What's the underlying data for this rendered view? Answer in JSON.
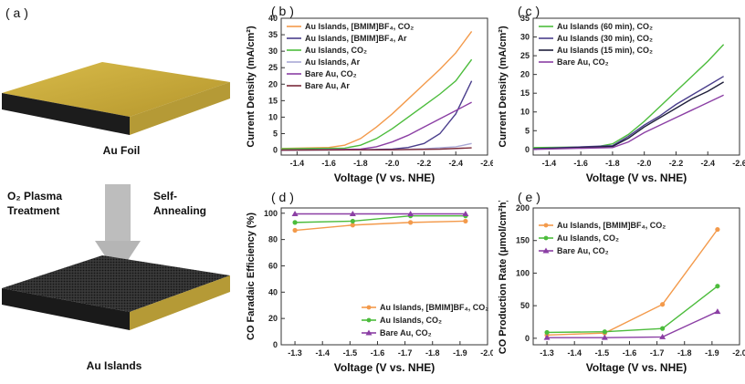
{
  "panel_a": {
    "label": "( a )",
    "foil_caption": "Au Foil",
    "treatment_left": [
      "O₂ Plasma",
      "Treatment"
    ],
    "treatment_right": [
      "Self-",
      "Annealing"
    ],
    "islands_caption": "Au Islands",
    "colors": {
      "gold": "#c8a93a",
      "gold_dark": "#9a7f22",
      "arrow": "#b8b8b8",
      "islands": "#2b2b2b"
    }
  },
  "chart_data": [
    {
      "id": "b",
      "panel_label": "( b )",
      "type": "line",
      "xlabel": "Voltage (V vs. NHE)",
      "ylabel": "Current Density (mA/cm²)",
      "xlim": [
        -1.3,
        -2.6
      ],
      "ylim": [
        -1.5,
        40
      ],
      "xticks": [
        "-1.4",
        "-1.6",
        "-1.8",
        "-2.0",
        "-2.2",
        "-2.4",
        "-2.6"
      ],
      "xtick_values": [
        -1.4,
        -1.6,
        -1.8,
        -2.0,
        -2.2,
        -2.4,
        -2.6
      ],
      "yticks": [
        "0",
        "5",
        "10",
        "15",
        "20",
        "25",
        "30",
        "35",
        "40"
      ],
      "ytick_values": [
        0,
        5,
        10,
        15,
        20,
        25,
        30,
        35,
        40
      ],
      "legend": "top-left",
      "series": [
        {
          "name": "Au Islands, [BMIM]BF₄, CO₂",
          "color": "#f39a4b",
          "x": [
            -1.3,
            -1.6,
            -1.7,
            -1.8,
            -1.9,
            -2.0,
            -2.1,
            -2.2,
            -2.3,
            -2.4,
            -2.5
          ],
          "y": [
            0.5,
            0.8,
            1.5,
            3.5,
            7,
            11,
            15.5,
            20,
            24.5,
            29.5,
            36
          ]
        },
        {
          "name": "Au Islands, [BMIM]BF₄, Ar",
          "color": "#4a3e8c",
          "x": [
            -1.3,
            -1.8,
            -2.0,
            -2.1,
            -2.2,
            -2.3,
            -2.4,
            -2.5
          ],
          "y": [
            0,
            0.1,
            0.3,
            0.8,
            2,
            5,
            11,
            21
          ]
        },
        {
          "name": "Au Islands, CO₂",
          "color": "#4cbc3c",
          "x": [
            -1.3,
            -1.7,
            -1.8,
            -1.9,
            -2.0,
            -2.1,
            -2.2,
            -2.3,
            -2.4,
            -2.5
          ],
          "y": [
            0.4,
            0.6,
            1.5,
            3.5,
            6.5,
            10,
            13.5,
            17,
            21,
            27.5
          ]
        },
        {
          "name": "Au Islands, Ar",
          "color": "#a9a9d6",
          "x": [
            -1.3,
            -2.0,
            -2.2,
            -2.4,
            -2.5
          ],
          "y": [
            0,
            0.1,
            0.4,
            1,
            2
          ]
        },
        {
          "name": "Bare Au, CO₂",
          "color": "#8b3fa4",
          "x": [
            -1.3,
            -1.8,
            -1.9,
            -2.0,
            -2.1,
            -2.2,
            -2.3,
            -2.4,
            -2.5
          ],
          "y": [
            0,
            0.3,
            1,
            2.5,
            4.5,
            7,
            9.5,
            12,
            14.5
          ]
        },
        {
          "name": "Bare Au, Ar",
          "color": "#7a2a3a",
          "x": [
            -1.3,
            -2.0,
            -2.3,
            -2.5
          ],
          "y": [
            0,
            0.1,
            0.3,
            0.7
          ]
        }
      ]
    },
    {
      "id": "c",
      "panel_label": "( c )",
      "type": "line",
      "xlabel": "Voltage (V vs. NHE)",
      "ylabel": "Current Density (mA/cm²)",
      "xlim": [
        -1.3,
        -2.6
      ],
      "ylim": [
        -1.5,
        35
      ],
      "xticks": [
        "-1.4",
        "-1.6",
        "-1.8",
        "-2.0",
        "-2.2",
        "-2.4",
        "-2.6"
      ],
      "xtick_values": [
        -1.4,
        -1.6,
        -1.8,
        -2.0,
        -2.2,
        -2.4,
        -2.6
      ],
      "yticks": [
        "0",
        "5",
        "10",
        "15",
        "20",
        "25",
        "30",
        "35"
      ],
      "ytick_values": [
        0,
        5,
        10,
        15,
        20,
        25,
        30,
        35
      ],
      "legend": "top-left",
      "series": [
        {
          "name": "Au Islands (60 min), CO₂",
          "color": "#4cbc3c",
          "x": [
            -1.3,
            -1.7,
            -1.8,
            -1.9,
            -2.0,
            -2.1,
            -2.2,
            -2.3,
            -2.4,
            -2.5
          ],
          "y": [
            0.5,
            0.7,
            1.5,
            4,
            7.5,
            11.5,
            15.5,
            19.5,
            23.5,
            28
          ]
        },
        {
          "name": "Au Islands (30 min), CO₂",
          "color": "#4a3e8c",
          "x": [
            -1.3,
            -1.8,
            -1.9,
            -2.0,
            -2.1,
            -2.2,
            -2.3,
            -2.4,
            -2.5
          ],
          "y": [
            0.2,
            1,
            3.5,
            6.5,
            9,
            12,
            14.5,
            17,
            19.5
          ]
        },
        {
          "name": "Au Islands (15 min), CO₂",
          "color": "#1f1f3a",
          "x": [
            -1.3,
            -1.8,
            -1.9,
            -2.0,
            -2.1,
            -2.2,
            -2.3,
            -2.4,
            -2.5
          ],
          "y": [
            0.1,
            0.8,
            3,
            6,
            8.5,
            11,
            13.5,
            15.5,
            18
          ]
        },
        {
          "name": "Bare Au, CO₂",
          "color": "#8b3fa4",
          "x": [
            -1.3,
            -1.8,
            -1.9,
            -2.0,
            -2.1,
            -2.2,
            -2.3,
            -2.4,
            -2.5
          ],
          "y": [
            0,
            0.5,
            2,
            4.5,
            6.5,
            8.5,
            10.5,
            12.5,
            14.5
          ]
        }
      ]
    },
    {
      "id": "d",
      "panel_label": "( d )",
      "type": "line",
      "xlabel": "Voltage (V vs. NHE)",
      "ylabel": "CO Faradaic Efficiency (%)",
      "xlim": [
        -1.25,
        -2.0
      ],
      "ylim": [
        0,
        104
      ],
      "xticks": [
        "-1.3",
        "-1.4",
        "-1.5",
        "-1.6",
        "-1.7",
        "-1.8",
        "-1.9",
        "-2.0"
      ],
      "xtick_values": [
        -1.3,
        -1.4,
        -1.5,
        -1.6,
        -1.7,
        -1.8,
        -1.9,
        -2.0
      ],
      "yticks": [
        "0",
        "20",
        "40",
        "60",
        "80",
        "100"
      ],
      "ytick_values": [
        0,
        20,
        40,
        60,
        80,
        100
      ],
      "legend": "bottom-right",
      "series": [
        {
          "name": "Au Islands, [BMIM]BF₄, CO₂",
          "color": "#f39a4b",
          "marker": "circle",
          "x": [
            -1.3,
            -1.51,
            -1.72,
            -1.92
          ],
          "y": [
            87,
            91,
            93,
            94
          ]
        },
        {
          "name": "Au Islands, CO₂",
          "color": "#4cbc3c",
          "marker": "circle",
          "x": [
            -1.3,
            -1.51,
            -1.72,
            -1.92
          ],
          "y": [
            93,
            94,
            98,
            98
          ]
        },
        {
          "name": "Bare Au, CO₂",
          "color": "#8b3fa4",
          "marker": "triangle",
          "x": [
            -1.3,
            -1.51,
            -1.72,
            -1.92
          ],
          "y": [
            99.5,
            99.5,
            99.5,
            99.5
          ]
        }
      ]
    },
    {
      "id": "e",
      "panel_label": "( e )",
      "type": "line",
      "xlabel": "Voltage (V vs. NHE)",
      "ylabel": "CO Production Rate (μmol/cm²h)",
      "xlim": [
        -1.25,
        -2.0
      ],
      "ylim": [
        -10,
        200
      ],
      "xticks": [
        "-1.3",
        "-1.4",
        "-1.5",
        "-1.6",
        "-1.7",
        "-1.8",
        "-1.9",
        "-2.0"
      ],
      "xtick_values": [
        -1.3,
        -1.4,
        -1.5,
        -1.6,
        -1.7,
        -1.8,
        -1.9,
        -2.0
      ],
      "yticks": [
        "0",
        "50",
        "100",
        "150",
        "200"
      ],
      "ytick_values": [
        0,
        50,
        100,
        150,
        200
      ],
      "legend": "top-left",
      "series": [
        {
          "name": "Au Islands, [BMIM]BF₄, CO₂",
          "color": "#f39a4b",
          "marker": "circle",
          "x": [
            -1.3,
            -1.51,
            -1.72,
            -1.92
          ],
          "y": [
            5,
            8,
            52,
            167
          ]
        },
        {
          "name": "Au Islands, CO₂",
          "color": "#4cbc3c",
          "marker": "circle",
          "x": [
            -1.3,
            -1.51,
            -1.72,
            -1.92
          ],
          "y": [
            9,
            10,
            15,
            80
          ]
        },
        {
          "name": "Bare Au, CO₂",
          "color": "#8b3fa4",
          "marker": "triangle",
          "x": [
            -1.3,
            -1.51,
            -1.72,
            -1.92
          ],
          "y": [
            1,
            1,
            2,
            41
          ]
        }
      ]
    }
  ]
}
